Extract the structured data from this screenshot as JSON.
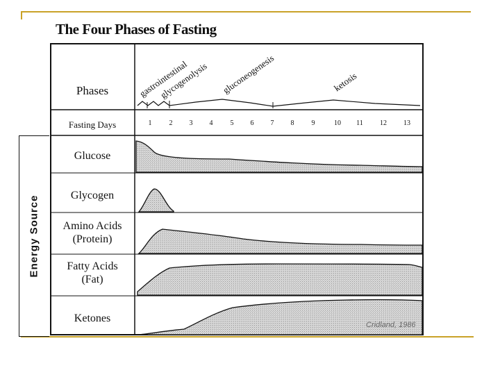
{
  "title": "The Four Phases of Fasting",
  "side_label": "Energy Source",
  "phases_label": "Phases",
  "fasting_days_label": "Fasting Days",
  "phase_names": [
    "gastrointestinal",
    "glycogenolysis",
    "gluconeogenesis",
    "ketosis"
  ],
  "days": [
    "1",
    "2",
    "3",
    "4",
    "5",
    "6",
    "7",
    "8",
    "9",
    "10",
    "11",
    "12",
    "13"
  ],
  "rows": {
    "glucose": "Glucose",
    "glycogen": "Glycogen",
    "amino_line1": "Amino Acids",
    "amino_line2": "(Protein)",
    "fatty_line1": "Fatty Acids",
    "fatty_line2": "(Fat)",
    "ketones": "Ketones"
  },
  "credit": "Cridland, 1986",
  "colors": {
    "frame": "#c9a227",
    "curve_fill": "#d4d4d4",
    "line": "#111111"
  }
}
